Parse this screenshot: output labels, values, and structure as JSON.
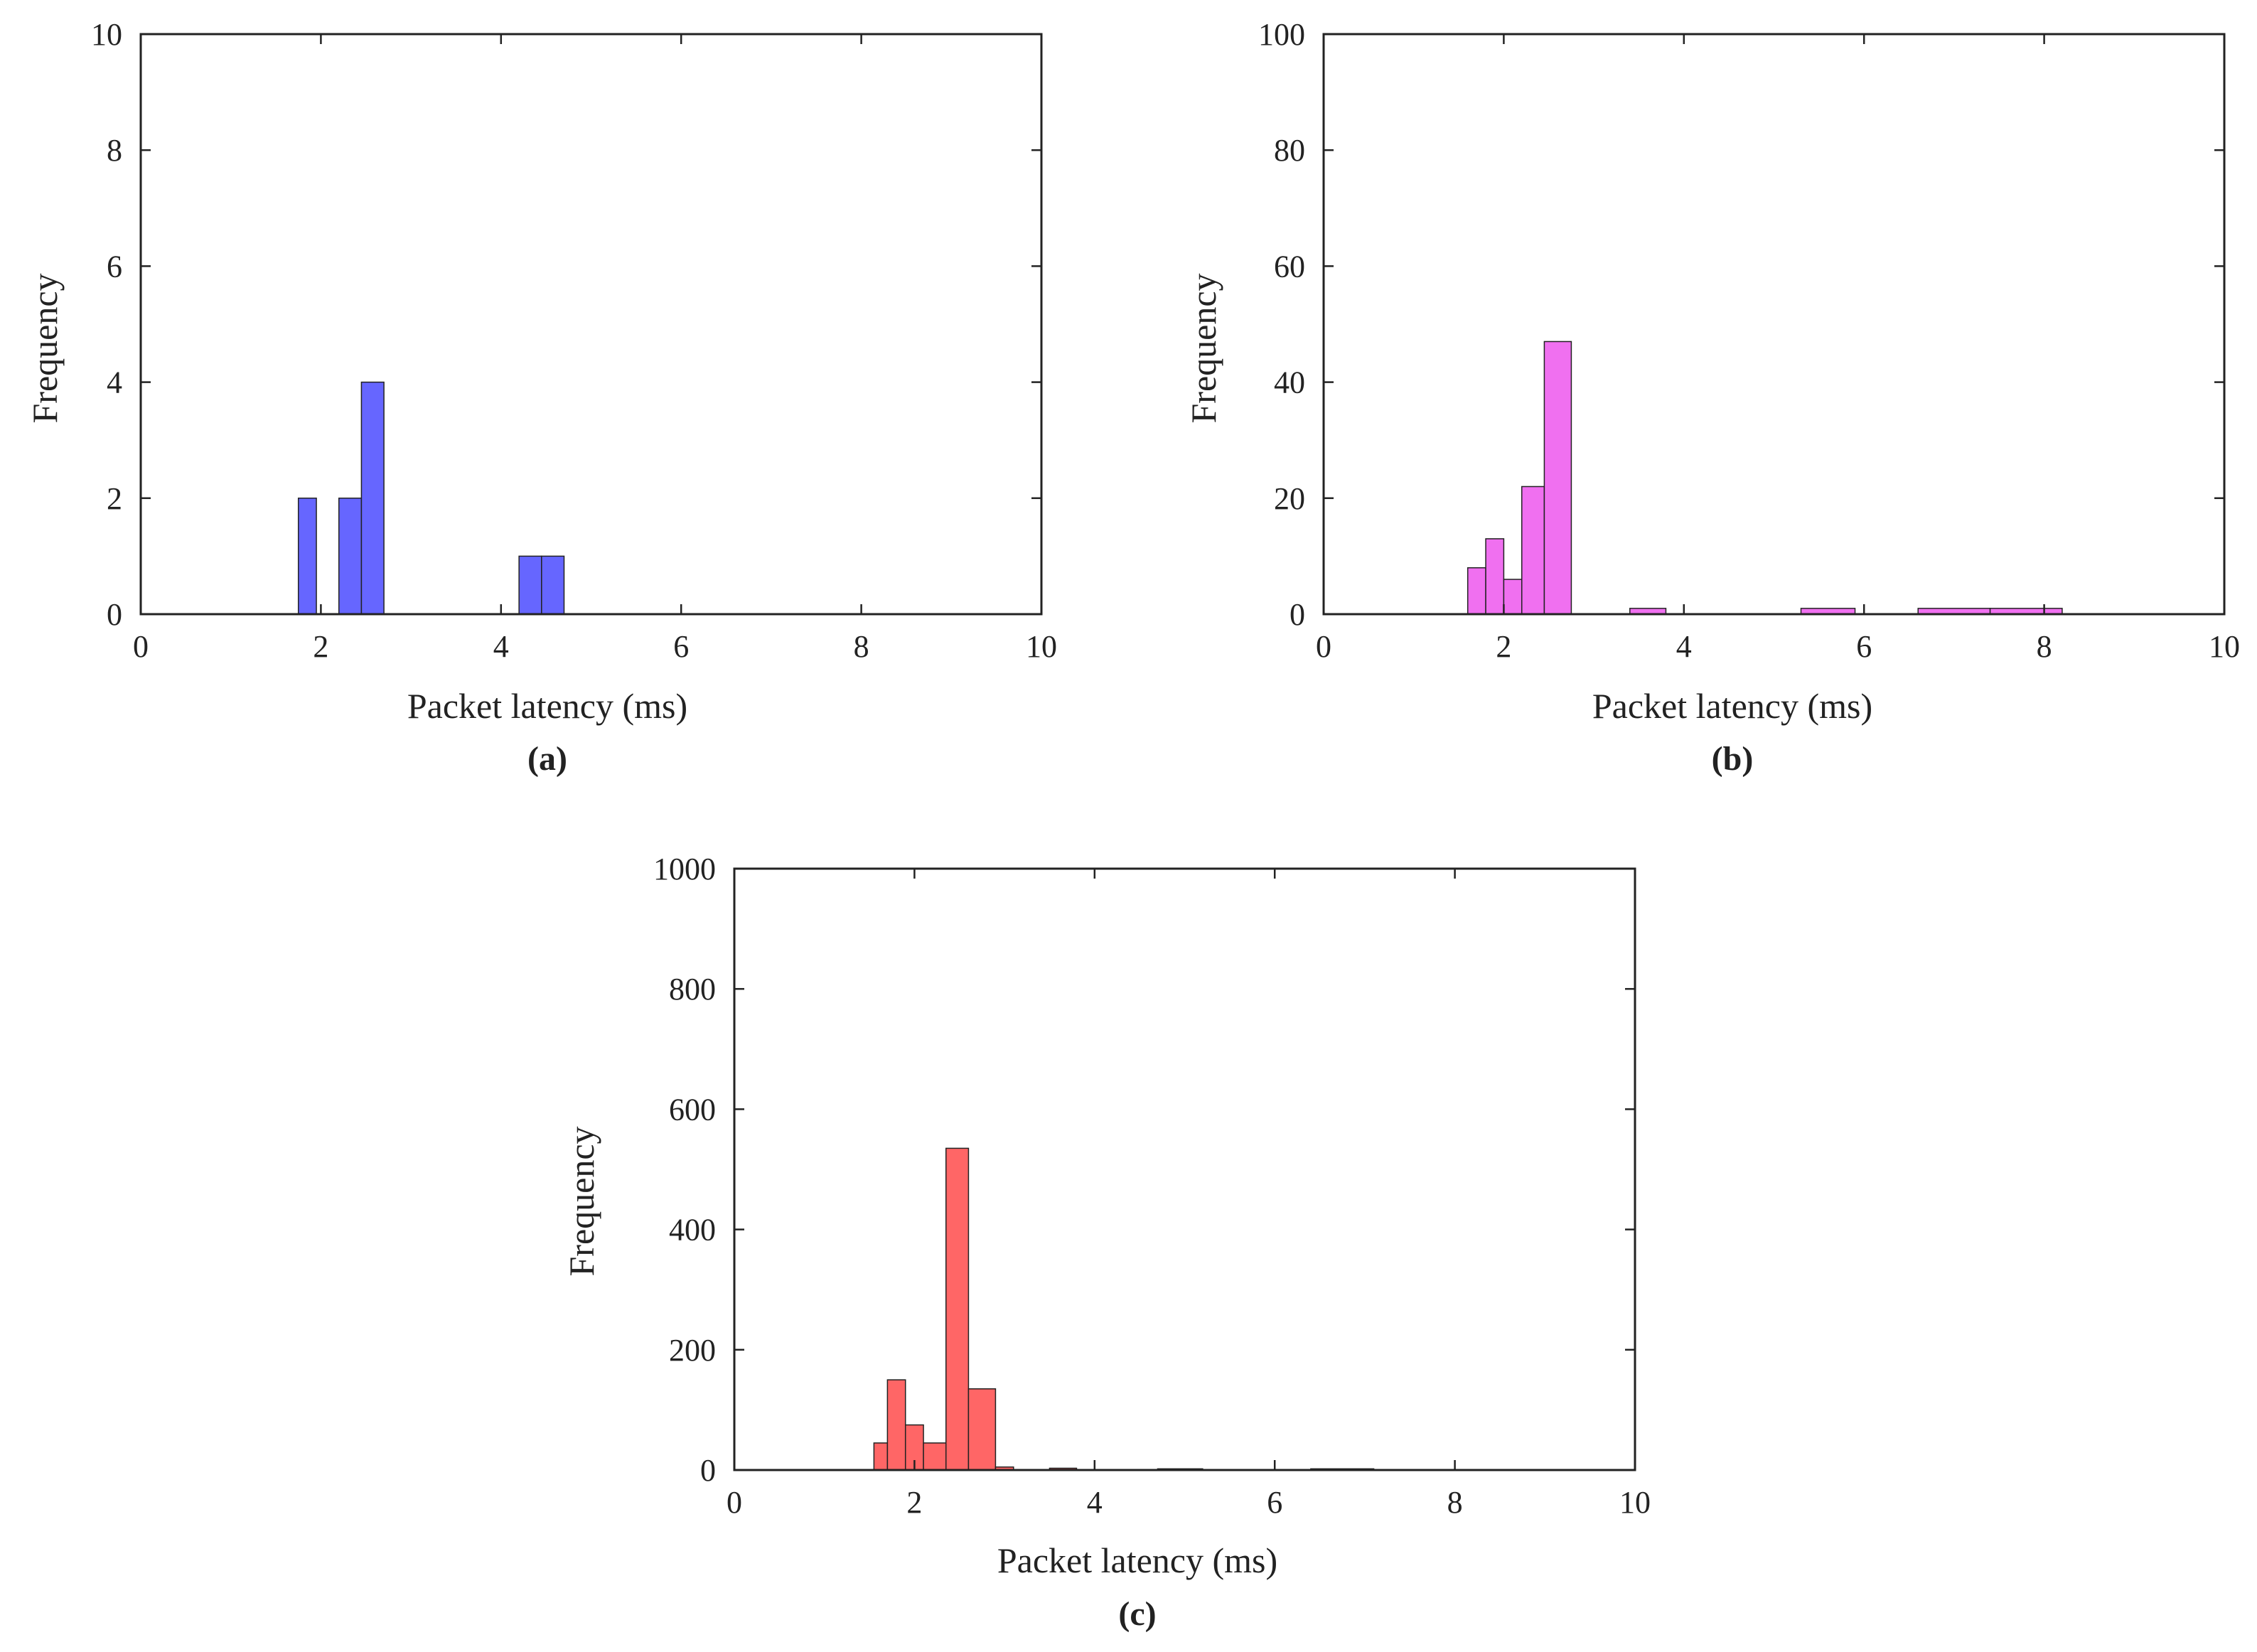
{
  "figure": {
    "background": "#ffffff",
    "axis_color": "#222222"
  },
  "chart_data": [
    {
      "type": "bar",
      "panel": "(a)",
      "caption": "(a)",
      "xlabel": "Packet latency (ms)",
      "ylabel": "Frequency",
      "xlim": [
        0,
        10
      ],
      "ylim": [
        0,
        10
      ],
      "xticks": [
        0,
        2,
        4,
        6,
        8,
        10
      ],
      "yticks": [
        0,
        2,
        4,
        6,
        8,
        10
      ],
      "grid": false,
      "color": "#6666ff",
      "bins": [
        {
          "x0": 1.75,
          "x1": 1.95,
          "value": 2
        },
        {
          "x0": 2.2,
          "x1": 2.45,
          "value": 2
        },
        {
          "x0": 2.45,
          "x1": 2.7,
          "value": 4
        },
        {
          "x0": 4.2,
          "x1": 4.45,
          "value": 1
        },
        {
          "x0": 4.45,
          "x1": 4.7,
          "value": 1
        }
      ]
    },
    {
      "type": "bar",
      "panel": "(b)",
      "caption": "(b)",
      "xlabel": "Packet latency (ms)",
      "ylabel": "Frequency",
      "xlim": [
        0,
        10
      ],
      "ylim": [
        0,
        100
      ],
      "xticks": [
        0,
        2,
        4,
        6,
        8,
        10
      ],
      "yticks": [
        0,
        20,
        40,
        60,
        80,
        100
      ],
      "grid": false,
      "color": "#f070f0",
      "bins": [
        {
          "x0": 1.6,
          "x1": 1.8,
          "value": 8
        },
        {
          "x0": 1.8,
          "x1": 2.0,
          "value": 13
        },
        {
          "x0": 2.0,
          "x1": 2.2,
          "value": 6
        },
        {
          "x0": 2.2,
          "x1": 2.45,
          "value": 22
        },
        {
          "x0": 2.45,
          "x1": 2.75,
          "value": 47
        },
        {
          "x0": 3.4,
          "x1": 3.8,
          "value": 1
        },
        {
          "x0": 5.3,
          "x1": 5.9,
          "value": 1
        },
        {
          "x0": 6.6,
          "x1": 7.4,
          "value": 1
        },
        {
          "x0": 7.4,
          "x1": 8.2,
          "value": 1
        }
      ]
    },
    {
      "type": "bar",
      "panel": "(c)",
      "caption": "(c)",
      "xlabel": "Packet latency (ms)",
      "ylabel": "Frequency",
      "xlim": [
        0,
        10
      ],
      "ylim": [
        0,
        1000
      ],
      "xticks": [
        0,
        2,
        4,
        6,
        8,
        10
      ],
      "yticks": [
        0,
        200,
        400,
        600,
        800,
        1000
      ],
      "grid": false,
      "color": "#ff6666",
      "bins": [
        {
          "x0": 1.55,
          "x1": 1.7,
          "value": 45
        },
        {
          "x0": 1.7,
          "x1": 1.9,
          "value": 150
        },
        {
          "x0": 1.9,
          "x1": 2.1,
          "value": 75
        },
        {
          "x0": 2.1,
          "x1": 2.35,
          "value": 45
        },
        {
          "x0": 2.35,
          "x1": 2.6,
          "value": 535
        },
        {
          "x0": 2.6,
          "x1": 2.9,
          "value": 135
        },
        {
          "x0": 2.9,
          "x1": 3.1,
          "value": 5
        },
        {
          "x0": 3.5,
          "x1": 3.8,
          "value": 3
        },
        {
          "x0": 4.7,
          "x1": 5.2,
          "value": 2
        },
        {
          "x0": 6.4,
          "x1": 7.1,
          "value": 2
        }
      ]
    }
  ]
}
